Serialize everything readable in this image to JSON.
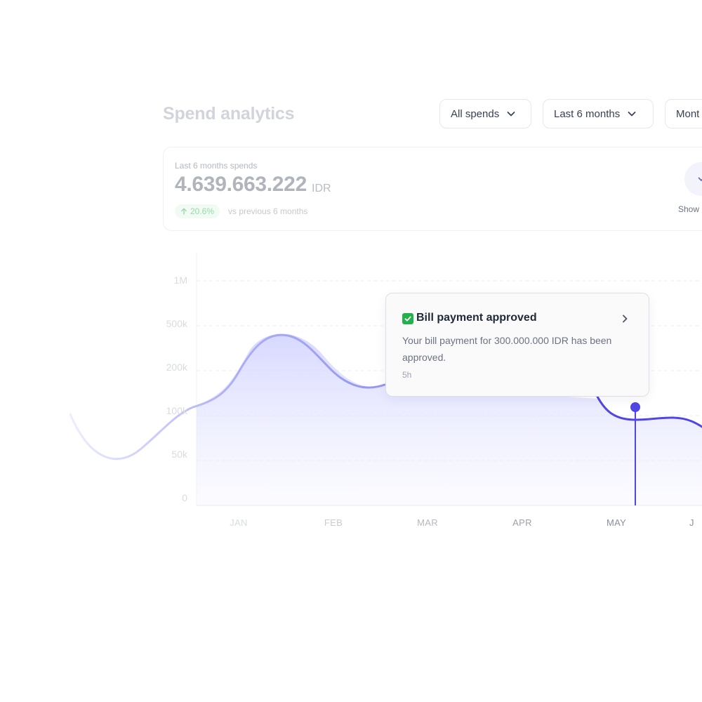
{
  "header": {
    "title": "Spend analytics",
    "filters": [
      {
        "label": "All spends"
      },
      {
        "label": "Last 6 months"
      },
      {
        "label": "Mont"
      }
    ]
  },
  "summary": {
    "label": "Last 6 months spends",
    "value": "4.639.663.222",
    "currency": "IDR",
    "growth": "20.6%",
    "comparison": "vs previous 6 months",
    "show_label": "Show"
  },
  "notification": {
    "title": "Bill payment approved",
    "body": "Your bill payment for 300.000.000 IDR has been approved.",
    "time": "5h"
  },
  "chart_data": {
    "type": "area",
    "y_ticks": [
      "1M",
      "500k",
      "200k",
      "100k",
      "50k",
      "0"
    ],
    "x_ticks": [
      "JAN",
      "FEB",
      "MAR",
      "APR",
      "MAY",
      "J"
    ],
    "highlighted_point": "MAY",
    "grid": "dashed horizontal",
    "colors": {
      "line": "#4f46e5",
      "fill": "#a5a8ff"
    }
  }
}
